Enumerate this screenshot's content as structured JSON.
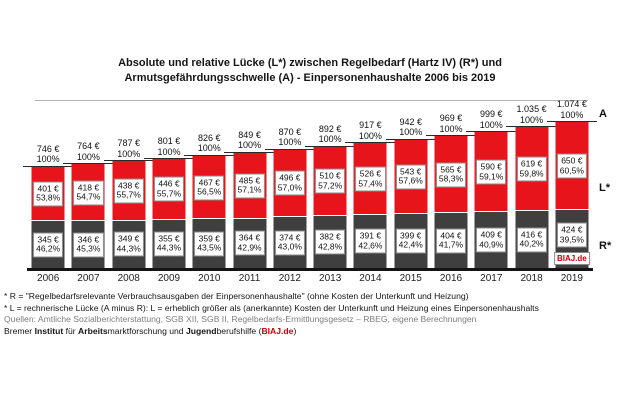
{
  "title": {
    "line1": "Absolute und relative Lücke (L*) zwischen Regelbedarf (Hartz IV) (R*) und",
    "line2": "Armutsgefährdungsschwelle (A) - Einpersonenhaushalte 2006 bis 2019"
  },
  "right_axis": {
    "a": "A",
    "l": "L*",
    "r": "R*"
  },
  "watermark": "BIAJ.de",
  "colors": {
    "luecke_red": "#e8141b",
    "regelbedarf_gray": "#3f3f3f",
    "brand_red": "#cc0007",
    "box_border": "#8a8a8a"
  },
  "chart_data": {
    "type": "bar",
    "stacked": true,
    "title": "Absolute und relative Lücke (L*) zwischen Regelbedarf (Hartz IV) (R*) und Armutsgefährdungsschwelle (A) - Einpersonenhaushalte 2006 bis 2019",
    "categories": [
      "2006",
      "2007",
      "2008",
      "2009",
      "2010",
      "2011",
      "2012",
      "2013",
      "2014",
      "2015",
      "2016",
      "2017",
      "2018",
      "2019"
    ],
    "series": [
      {
        "name": "R* Regelbedarf (€)",
        "color": "#3f3f3f",
        "values": [
          345,
          346,
          349,
          355,
          359,
          364,
          374,
          382,
          391,
          399,
          404,
          409,
          416,
          424
        ],
        "pct_labels": [
          "46,2%",
          "45,3%",
          "44,3%",
          "44,3%",
          "43,5%",
          "42,9%",
          "43,0%",
          "42,8%",
          "42,6%",
          "42,4%",
          "41,7%",
          "40,9%",
          "40,2%",
          "39,5%"
        ]
      },
      {
        "name": "L* Lücke (€)",
        "color": "#e8141b",
        "values": [
          401,
          418,
          438,
          446,
          467,
          485,
          496,
          510,
          526,
          543,
          565,
          590,
          619,
          650
        ],
        "pct_labels": [
          "53,8%",
          "54,7%",
          "55,7%",
          "55,7%",
          "56,5%",
          "57,1%",
          "57,0%",
          "57,2%",
          "57,4%",
          "57,6%",
          "58,3%",
          "59,1%",
          "59,8%",
          "60,5%"
        ]
      }
    ],
    "totals": {
      "name": "A Armutsgefährdungsschwelle (€)",
      "values": [
        746,
        764,
        787,
        801,
        826,
        849,
        870,
        892,
        917,
        942,
        969,
        999,
        1035,
        1074
      ],
      "labels": [
        "746 €",
        "764 €",
        "787 €",
        "801 €",
        "826 €",
        "849 €",
        "870 €",
        "892 €",
        "917 €",
        "942 €",
        "969 €",
        "999 €",
        "1.035 €",
        "1.074 €"
      ],
      "pct_label": "100%"
    },
    "ylim": [
      0,
      1074
    ],
    "legend_position": "right",
    "grid": false
  },
  "footnotes": {
    "f1": "* R = \"Regelbedarfsrelevante Verbrauchsausgaben der Einpersonenhaushalte\" (ohne Kosten der Unterkunft und Heizung)",
    "f2": "* L = rechnerische Lücke (A minus R): L = erheblich größer als (anerkannte) Kosten der Unterkunft und Heizung eines Einpersonenhaushalts",
    "f3": "Quellen: Amtliche Sozialberichterstattung, SGB XII, SGB II, Regelbedarfs-Ermittlungsgesetz – RBEG, eigene Berechnungen",
    "source": {
      "p1": "Bremer ",
      "b1": "Institut",
      "p2": " für ",
      "b2": "Arbeits",
      "p3": "marktforschung und ",
      "b3": "Jugend",
      "p4": "berufshilfe (",
      "brand": "BIAJ.de",
      "p5": ")"
    }
  }
}
